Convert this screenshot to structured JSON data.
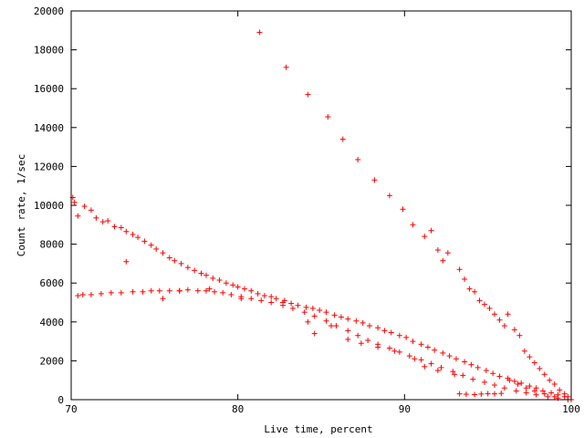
{
  "chart_data": {
    "type": "scatter",
    "title": "",
    "xlabel": "Live time, percent",
    "ylabel": "Count rate, 1/sec",
    "xlim": [
      70,
      100
    ],
    "ylim": [
      0,
      20000
    ],
    "xticks": [
      70,
      80,
      90,
      100
    ],
    "xtick_labels": [
      "70",
      "80",
      "90",
      "100"
    ],
    "yticks": [
      0,
      2000,
      4000,
      6000,
      8000,
      10000,
      12000,
      14000,
      16000,
      18000,
      20000
    ],
    "ytick_labels": [
      "0",
      "2000",
      "4000",
      "6000",
      "8000",
      "10000",
      "12000",
      "14000",
      "16000",
      "18000",
      "20000"
    ],
    "grid": false,
    "legend": "none",
    "marker": "+",
    "color": "#ff0000",
    "series": [
      {
        "x": [
          81.3,
          82.9,
          84.2,
          85.4,
          86.3,
          87.2,
          88.2,
          89.1,
          89.9,
          90.5,
          91.2,
          91.6,
          92.0,
          92.3,
          92.6,
          93.3,
          93.6,
          93.9,
          94.2,
          94.5,
          94.8,
          95.1,
          95.4,
          95.7,
          96.0,
          96.2,
          96.6,
          96.9,
          97.2,
          97.5,
          97.8,
          98.1,
          98.4,
          98.7,
          99.0,
          99.3,
          99.6,
          99.8,
          100.0
        ],
        "y": [
          18900,
          17100,
          15700,
          14550,
          13400,
          12350,
          11300,
          10500,
          9800,
          9000,
          8400,
          8700,
          7700,
          7150,
          7550,
          6700,
          6200,
          5700,
          5550,
          5100,
          4900,
          4700,
          4400,
          4100,
          3800,
          4400,
          3600,
          3300,
          2500,
          2200,
          1900,
          1600,
          1300,
          1000,
          800,
          500,
          300,
          150,
          0
        ]
      },
      {
        "x": [
          70.1,
          70.2,
          70.4,
          70.8,
          71.2,
          71.5,
          71.9,
          72.2,
          72.6,
          73.0,
          73.3,
          73.7,
          74.0,
          74.4,
          74.8,
          75.1,
          75.5,
          75.9,
          76.2,
          76.6,
          77.0,
          77.4,
          77.8,
          78.1,
          78.5,
          78.9,
          79.3,
          79.7,
          80.0,
          80.4,
          80.8,
          81.2,
          81.6,
          82.0,
          82.3,
          82.8,
          83.2,
          83.6,
          84.1,
          84.5,
          84.9,
          85.3,
          85.8,
          86.2,
          86.6,
          87.1,
          87.5,
          87.9,
          88.4,
          88.8,
          89.2,
          89.7,
          90.1,
          90.5,
          91.0,
          91.4,
          91.8,
          92.3,
          92.7,
          93.1,
          93.6,
          94.0,
          94.4,
          94.9,
          95.3,
          95.7,
          96.2,
          96.6,
          97.0,
          97.5,
          97.9,
          98.3,
          98.8,
          99.2,
          99.6,
          100.0
        ],
        "y": [
          10400,
          10150,
          9450,
          9950,
          9750,
          9350,
          9150,
          9200,
          8900,
          8850,
          8650,
          8500,
          8350,
          8150,
          7950,
          7750,
          7550,
          7300,
          7150,
          7000,
          6800,
          6650,
          6500,
          6400,
          6250,
          6150,
          6000,
          5900,
          5800,
          5700,
          5600,
          5450,
          5350,
          5300,
          5200,
          5100,
          4950,
          4850,
          4750,
          4700,
          4600,
          4500,
          4350,
          4250,
          4150,
          4050,
          3950,
          3800,
          3700,
          3550,
          3450,
          3300,
          3200,
          3000,
          2850,
          2700,
          2550,
          2400,
          2250,
          2100,
          1950,
          1800,
          1650,
          1500,
          1350,
          1200,
          1100,
          950,
          850,
          700,
          600,
          450,
          350,
          250,
          150,
          0
        ]
      },
      {
        "x": [
          70.4,
          70.7,
          71.2,
          71.8,
          72.4,
          73.0,
          73.7,
          74.3,
          74.8,
          75.3,
          75.9,
          76.5,
          77.0,
          77.6,
          78.1,
          78.6,
          79.1,
          79.6,
          80.2,
          80.8,
          81.4,
          82.0,
          82.7,
          83.3,
          84.0,
          84.6,
          85.3,
          85.9,
          86.6,
          87.2,
          87.8,
          88.4,
          89.1,
          89.7,
          90.3,
          91.0,
          91.6,
          92.2,
          92.9,
          93.5,
          94.1,
          94.8,
          95.4,
          96.0,
          96.7,
          97.3,
          97.9,
          98.6,
          99.2,
          99.8
        ],
        "y": [
          5350,
          5400,
          5400,
          5450,
          5500,
          5500,
          5550,
          5550,
          5600,
          5600,
          5600,
          5600,
          5650,
          5600,
          5600,
          5550,
          5500,
          5400,
          5300,
          5200,
          5100,
          5000,
          4850,
          4700,
          4500,
          4300,
          4050,
          3800,
          3550,
          3300,
          3050,
          2850,
          2650,
          2450,
          2250,
          2050,
          1850,
          1650,
          1450,
          1250,
          1050,
          900,
          750,
          600,
          450,
          350,
          250,
          150,
          80,
          0
        ]
      },
      {
        "x": [
          73.3,
          75.5,
          76.5,
          78.3,
          80.2,
          82.7,
          84.2,
          84.6,
          85.6,
          86.6,
          87.4,
          88.4,
          89.4,
          90.6,
          91.2,
          92.0,
          93.0,
          93.3,
          93.7,
          94.2,
          94.6,
          95.0,
          95.4,
          95.8,
          96.3,
          96.8,
          97.3,
          97.8,
          98.4,
          99.0
        ],
        "y": [
          7100,
          5200,
          5600,
          5700,
          5200,
          5000,
          4000,
          3400,
          3800,
          3100,
          2900,
          2700,
          2500,
          2100,
          1700,
          1500,
          1300,
          300,
          280,
          260,
          290,
          310,
          300,
          320,
          1000,
          800,
          600,
          450,
          300,
          150
        ]
      }
    ]
  }
}
